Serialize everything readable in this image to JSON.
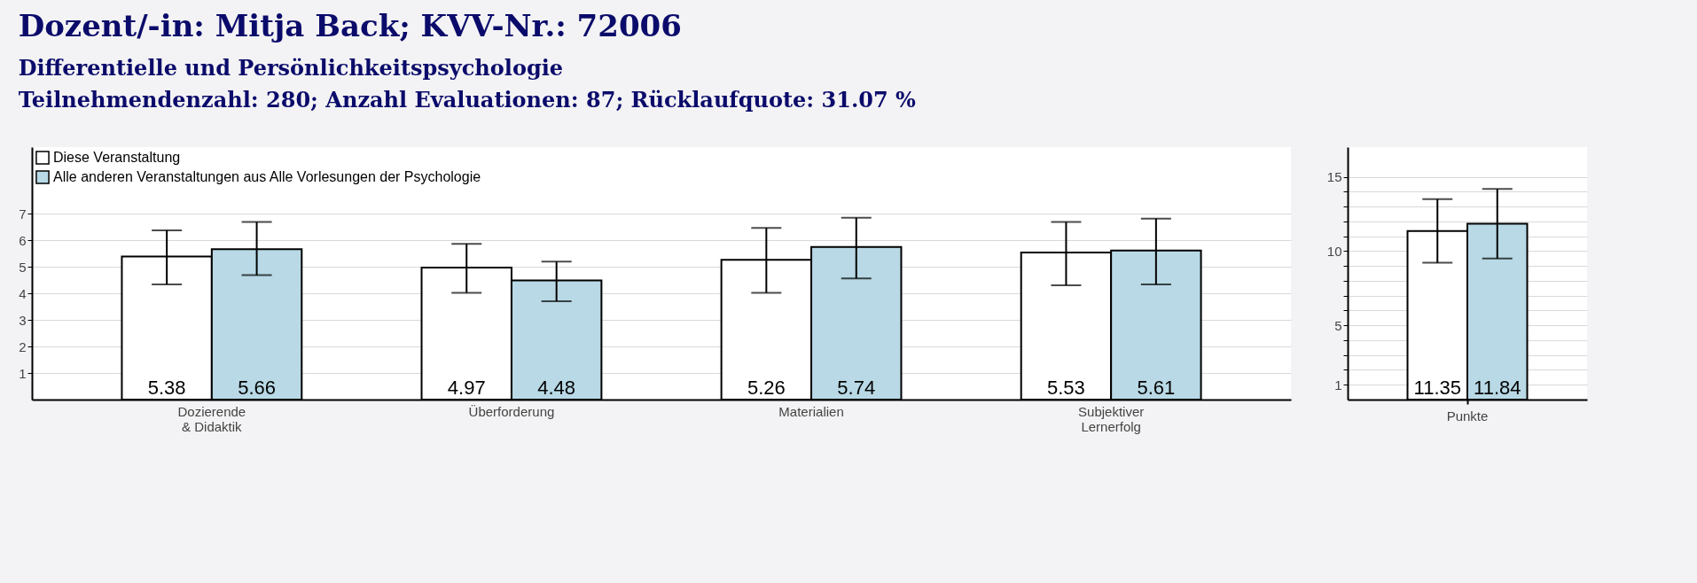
{
  "chart_data": [
    {
      "type": "bar",
      "title": "Dozent/-in: Mitja Back; KVV-Nr.: 72006",
      "subtitle": "Differentielle und Persönlichkeitspsychologie",
      "annotations": [
        "Teilnehmendenzahl: 280; Anzahl Evaluationen: 87; Rücklaufquote: 31.07 %"
      ],
      "categories": [
        "Dozierende\n& Didaktik",
        "Überforderung",
        "Materialien",
        "Subjektiver\nLernerfolg"
      ],
      "series": [
        {
          "name": "Diese Veranstaltung",
          "color": "#ffffff",
          "values": [
            5.38,
            4.97,
            5.26,
            5.53
          ],
          "errors": [
            [
              4.33,
              6.37
            ],
            [
              4.02,
              5.86
            ],
            [
              4.02,
              6.46
            ],
            [
              4.3,
              6.68
            ]
          ]
        },
        {
          "name": "Alle anderen Veranstaltungen aus Alle Vorlesungen der Psychologie",
          "color": "#b8d9e5",
          "values": [
            5.66,
            4.48,
            5.74,
            5.61
          ],
          "errors": [
            [
              4.68,
              6.68
            ],
            [
              3.7,
              5.19
            ],
            [
              4.56,
              6.84
            ],
            [
              4.33,
              6.81
            ]
          ]
        }
      ],
      "ylim": [
        0,
        9.5
      ],
      "yticks": [
        1,
        2,
        3,
        4,
        5,
        6,
        7
      ],
      "grid": "y",
      "legend": "top left",
      "data_labels": true
    },
    {
      "type": "bar",
      "categories": [
        "Punkte"
      ],
      "series": [
        {
          "color": "#ffffff",
          "values": [
            11.35
          ],
          "errors": [
            [
              9.21,
              13.5
            ]
          ]
        },
        {
          "color": "#b8d9e5",
          "values": [
            11.84
          ],
          "errors": [
            [
              9.5,
              14.18
            ]
          ]
        }
      ],
      "ylim": [
        0,
        17
      ],
      "yticks": [
        1,
        {
          "value": 2,
          "label": null
        },
        {
          "value": 3,
          "label": null
        },
        {
          "value": 4,
          "label": null
        },
        5,
        {
          "value": 6,
          "label": null
        },
        {
          "value": 7,
          "label": null
        },
        {
          "value": 8,
          "label": null
        },
        {
          "value": 9,
          "label": null
        },
        10,
        {
          "value": 11,
          "label": null
        },
        {
          "value": 12,
          "label": null
        },
        {
          "value": 13,
          "label": null
        },
        {
          "value": 14,
          "label": null
        },
        15
      ],
      "grid": "y",
      "data_labels": true
    }
  ]
}
